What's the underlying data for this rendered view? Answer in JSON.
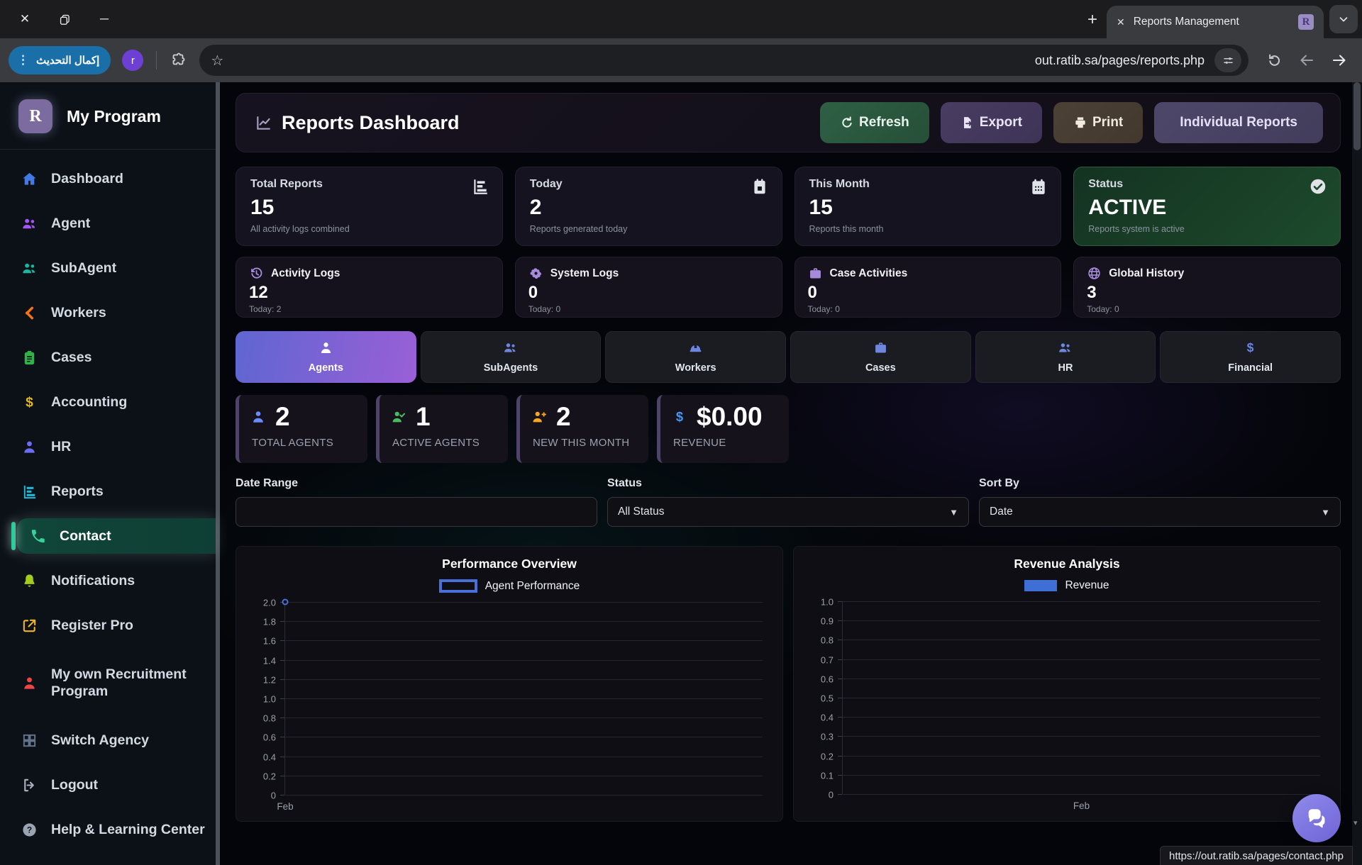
{
  "browser": {
    "new_tab_label": "+",
    "tab": {
      "title": "Reports Management",
      "favicon_letter": "R"
    },
    "toolbar": {
      "update_button_label": "إكمال التحديث",
      "avatar_letter": "r",
      "url": "out.ratib.sa/pages/reports.php"
    }
  },
  "sidebar": {
    "brand": {
      "logo_letter": "R",
      "name": "My Program"
    },
    "items": [
      {
        "label": "Dashboard",
        "icon": "home",
        "color": "#3f7ae8",
        "active": false
      },
      {
        "label": "Agent",
        "icon": "users",
        "color": "#a855f7",
        "active": false
      },
      {
        "label": "SubAgent",
        "icon": "users",
        "color": "#16b8a0",
        "active": false
      },
      {
        "label": "Workers",
        "icon": "tools",
        "color": "#f97316",
        "active": false
      },
      {
        "label": "Cases",
        "icon": "clipboard",
        "color": "#2fb344",
        "active": false
      },
      {
        "label": "Accounting",
        "icon": "dollar",
        "color": "#e8b80c",
        "active": false
      },
      {
        "label": "HR",
        "icon": "user",
        "color": "#6c6cf5",
        "active": false
      },
      {
        "label": "Reports",
        "icon": "chart-bar",
        "color": "#22b8d8",
        "active": false
      },
      {
        "label": "Contact",
        "icon": "phone",
        "color": "#34d39a",
        "active": true
      },
      {
        "label": "Notifications",
        "icon": "bell",
        "color": "#a3cc20",
        "active": false
      },
      {
        "label": "Register Pro",
        "icon": "external-link",
        "color": "#f0b429",
        "active": false
      },
      {
        "label": "My own Recruitment Program",
        "icon": "user",
        "color": "#ef4444",
        "active": false
      },
      {
        "label": "Switch Agency",
        "icon": "grid",
        "color": "#64748b",
        "active": false
      },
      {
        "label": "Logout",
        "icon": "logout",
        "color": "#aab2bd",
        "active": false
      },
      {
        "label": "Help & Learning Center",
        "icon": "question",
        "color": "#9aa4b2",
        "active": false
      }
    ]
  },
  "header": {
    "title": "Reports Dashboard",
    "buttons": [
      {
        "label": "Refresh",
        "icon": "refresh",
        "variant": "refresh"
      },
      {
        "label": "Export",
        "icon": "export",
        "variant": "export"
      },
      {
        "label": "Print",
        "icon": "print",
        "variant": "print"
      },
      {
        "label": "Individual Reports",
        "icon": "",
        "variant": "individual"
      }
    ]
  },
  "stats_primary": [
    {
      "label": "Total Reports",
      "value": "15",
      "subtitle": "All activity logs combined",
      "icon": "chart-bar",
      "variant": "default"
    },
    {
      "label": "Today",
      "value": "2",
      "subtitle": "Reports generated today",
      "icon": "calendar-day",
      "variant": "default"
    },
    {
      "label": "This Month",
      "value": "15",
      "subtitle": "Reports this month",
      "icon": "calendar",
      "variant": "default"
    },
    {
      "label": "Status",
      "value": "ACTIVE",
      "subtitle": "Reports system is active",
      "icon": "check-circle",
      "variant": "success"
    }
  ],
  "stats_secondary": [
    {
      "label": "Activity Logs",
      "value": "12",
      "subtitle": "Today: 2",
      "icon": "clock-history"
    },
    {
      "label": "System Logs",
      "value": "0",
      "subtitle": "Today: 0",
      "icon": "gear"
    },
    {
      "label": "Case Activities",
      "value": "0",
      "subtitle": "Today: 0",
      "icon": "briefcase"
    },
    {
      "label": "Global History",
      "value": "3",
      "subtitle": "Today: 0",
      "icon": "globe"
    }
  ],
  "category_tabs": [
    {
      "label": "Agents",
      "icon": "user",
      "active": true
    },
    {
      "label": "SubAgents",
      "icon": "users",
      "active": false
    },
    {
      "label": "Workers",
      "icon": "hard-hat",
      "active": false
    },
    {
      "label": "Cases",
      "icon": "briefcase",
      "active": false
    },
    {
      "label": "HR",
      "icon": "users",
      "active": false
    },
    {
      "label": "Financial",
      "icon": "dollar",
      "active": false
    }
  ],
  "agent_stats": [
    {
      "value": "2",
      "label": "TOTAL AGENTS",
      "icon": "user",
      "color": "#6b8afd"
    },
    {
      "value": "1",
      "label": "ACTIVE AGENTS",
      "icon": "user-check",
      "color": "#4cba5f"
    },
    {
      "value": "2",
      "label": "NEW THIS MONTH",
      "icon": "user-plus",
      "color": "#f5a623"
    },
    {
      "value": "$0.00",
      "label": "REVENUE",
      "icon": "dollar",
      "color": "#4596f7"
    }
  ],
  "filters": {
    "date_range": {
      "label": "Date Range",
      "value": ""
    },
    "status": {
      "label": "Status",
      "value": "All Status"
    },
    "sort_by": {
      "label": "Sort By",
      "value": "Date"
    }
  },
  "chart_data": [
    {
      "type": "line",
      "title": "Performance Overview",
      "legend": "Agent Performance",
      "legend_style": "outline",
      "accent": "#4a6fd8",
      "categories": [
        "Feb"
      ],
      "series": [
        {
          "name": "Agent Performance",
          "values": [
            2
          ]
        }
      ],
      "ylim": [
        0,
        2
      ],
      "ytick_step": 0.2,
      "x_label_align": "left",
      "grid": true,
      "legend_position": "top"
    },
    {
      "type": "bar",
      "title": "Revenue Analysis",
      "legend": "Revenue",
      "legend_style": "filled",
      "accent": "#3f6ed6",
      "categories": [
        "Feb"
      ],
      "series": [
        {
          "name": "Revenue",
          "values": [
            0
          ]
        }
      ],
      "ylim": [
        0,
        1
      ],
      "ytick_step": 0.1,
      "x_label_align": "center",
      "grid": true,
      "legend_position": "top"
    }
  ],
  "floating": {
    "status_url": "https://out.ratib.sa/pages/contact.php"
  }
}
